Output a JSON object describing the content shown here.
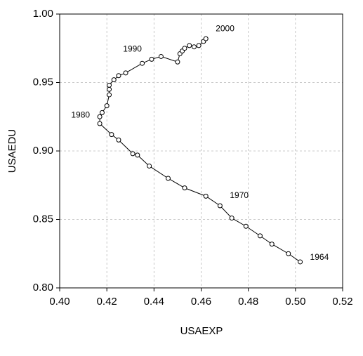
{
  "chart_data": {
    "type": "connected-scatter",
    "x_label": "USAEXP",
    "y_label": "USAEDU",
    "x": [
      0.502,
      0.497,
      0.49,
      0.485,
      0.479,
      0.473,
      0.468,
      0.462,
      0.453,
      0.446,
      0.438,
      0.433,
      0.431,
      0.425,
      0.422,
      0.417,
      0.417,
      0.418,
      0.42,
      0.421,
      0.421,
      0.421,
      0.423,
      0.425,
      0.428,
      0.435,
      0.439,
      0.443,
      0.45,
      0.451,
      0.452,
      0.453,
      0.455,
      0.457,
      0.459,
      0.461,
      0.462
    ],
    "y": [
      0.819,
      0.825,
      0.832,
      0.838,
      0.845,
      0.851,
      0.86,
      0.867,
      0.873,
      0.88,
      0.889,
      0.897,
      0.898,
      0.908,
      0.912,
      0.92,
      0.925,
      0.928,
      0.933,
      0.941,
      0.945,
      0.948,
      0.952,
      0.955,
      0.957,
      0.964,
      0.967,
      0.969,
      0.965,
      0.971,
      0.973,
      0.975,
      0.977,
      0.976,
      0.977,
      0.98,
      0.982
    ],
    "point_labels": [
      "1964",
      null,
      null,
      null,
      null,
      null,
      "1970",
      null,
      null,
      null,
      null,
      null,
      null,
      null,
      null,
      null,
      "1980",
      null,
      null,
      null,
      null,
      null,
      null,
      null,
      null,
      null,
      "1990",
      null,
      null,
      null,
      null,
      null,
      null,
      null,
      null,
      null,
      "2000"
    ],
    "color": "#000000",
    "xlim": [
      0.4,
      0.52
    ],
    "xticks": [
      {
        "value": 0.4,
        "label": "0.40"
      },
      0.42,
      0.44,
      0.46,
      0.48,
      {
        "value": 0.5,
        "label": "0.50"
      },
      0.52
    ],
    "ylim": [
      0.8,
      1.0
    ],
    "yticks": [
      {
        "value": 0.8,
        "label": "0.80"
      },
      0.85,
      {
        "value": 0.9,
        "label": "0.90"
      },
      0.95,
      {
        "value": 1.0,
        "label": "1.00"
      }
    ],
    "grid": true
  }
}
